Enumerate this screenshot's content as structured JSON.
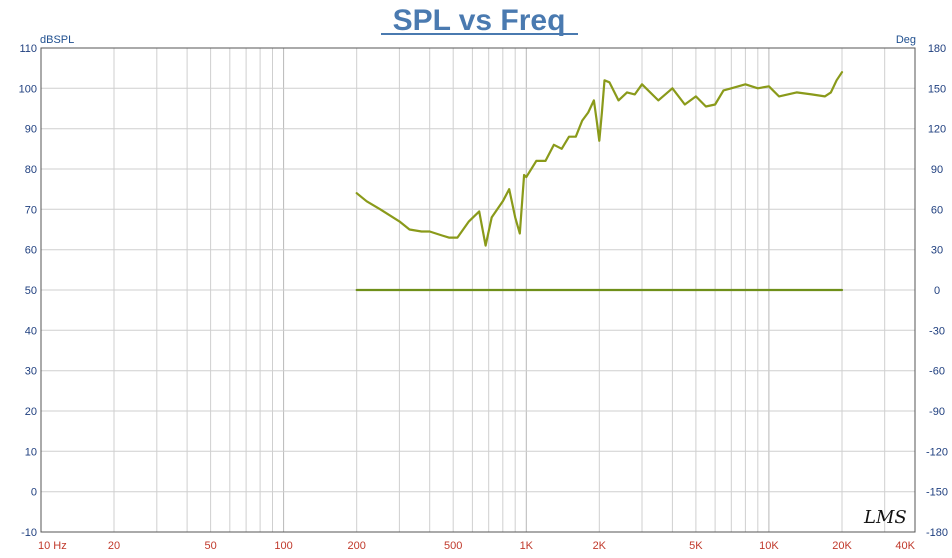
{
  "chart_data": {
    "type": "line",
    "title": "SPL vs Freq",
    "ylabel": "dBSPL",
    "y2label": "Deg",
    "x_scale": "log",
    "xlim": [
      10,
      40000
    ],
    "ylim": [
      -10,
      110
    ],
    "y2lim": [
      -180,
      180
    ],
    "grid": true,
    "x_tick_labels": [
      {
        "value": 10,
        "label": "10  Hz"
      },
      {
        "value": 20,
        "label": "20"
      },
      {
        "value": 50,
        "label": "50"
      },
      {
        "value": 100,
        "label": "100"
      },
      {
        "value": 200,
        "label": "200"
      },
      {
        "value": 500,
        "label": "500"
      },
      {
        "value": 1000,
        "label": "1K"
      },
      {
        "value": 2000,
        "label": "2K"
      },
      {
        "value": 5000,
        "label": "5K"
      },
      {
        "value": 10000,
        "label": "10K"
      },
      {
        "value": 20000,
        "label": "20K"
      },
      {
        "value": 40000,
        "label": "40K"
      }
    ],
    "y_ticks": [
      -10,
      0,
      10,
      20,
      30,
      40,
      50,
      60,
      70,
      80,
      90,
      100,
      110
    ],
    "y2_ticks": [
      -180,
      -150,
      -120,
      -90,
      -60,
      -30,
      0,
      30,
      60,
      90,
      120,
      150,
      180
    ],
    "series": [
      {
        "axis": "left",
        "color": "#8a9a1a",
        "x": [
          200,
          220,
          250,
          300,
          330,
          370,
          400,
          450,
          480,
          520,
          580,
          640,
          680,
          720,
          800,
          850,
          900,
          940,
          980,
          1000,
          1100,
          1200,
          1300,
          1400,
          1500,
          1600,
          1700,
          1800,
          1900,
          1950,
          2000,
          2050,
          2100,
          2200,
          2400,
          2600,
          2800,
          3000,
          3500,
          4000,
          4500,
          5000,
          5500,
          6000,
          6500,
          7000,
          8000,
          9000,
          10000,
          11000,
          13000,
          15000,
          17000,
          18000,
          19000,
          20000
        ],
        "y": [
          74,
          72,
          70,
          67,
          65,
          64.5,
          64.5,
          63.5,
          63,
          63,
          67,
          69.5,
          61,
          68,
          72,
          75,
          68,
          64,
          78.5,
          78,
          82,
          82,
          86,
          85,
          88,
          88,
          92,
          94,
          97,
          92,
          87,
          94,
          102,
          101.5,
          97,
          99,
          98.5,
          101,
          97,
          100,
          96,
          98,
          95.5,
          96,
          99.5,
          100,
          101,
          100,
          100.5,
          98,
          99,
          98.5,
          98,
          99,
          102,
          104
        ]
      },
      {
        "axis": "right",
        "color": "#6f8f1a",
        "x": [
          200,
          20000
        ],
        "y": [
          0,
          0
        ]
      }
    ]
  },
  "watermark": "LMS"
}
